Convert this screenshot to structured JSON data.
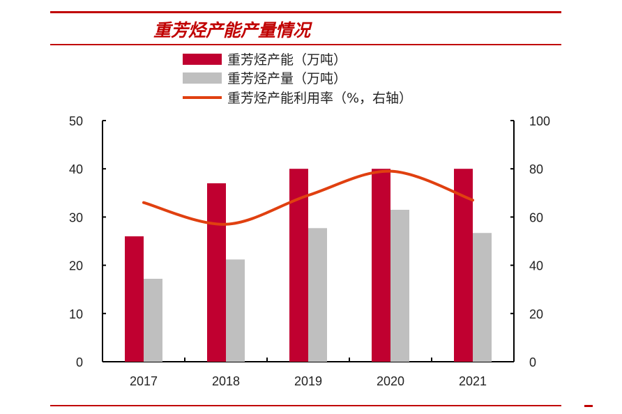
{
  "chart_data": {
    "type": "bar+line",
    "title": "重芳烃产能产量情况",
    "categories": [
      "2017",
      "2018",
      "2019",
      "2020",
      "2021"
    ],
    "series": [
      {
        "name": "重芳烃产能（万吨）",
        "type": "bar",
        "axis": "left",
        "color": "#c00030",
        "values": [
          26,
          37,
          40,
          40,
          40
        ]
      },
      {
        "name": "重芳烃产量（万吨）",
        "type": "bar",
        "axis": "left",
        "color": "#bfbfbf",
        "values": [
          17.2,
          21.2,
          27.7,
          31.5,
          26.7
        ]
      },
      {
        "name": "重芳烃产能利用率（%，右轴）",
        "type": "line",
        "axis": "right",
        "color": "#e04010",
        "values": [
          66,
          57,
          69,
          79,
          67
        ]
      }
    ],
    "ylim_left": [
      0,
      50
    ],
    "yticks_left": [
      0,
      10,
      20,
      30,
      40,
      50
    ],
    "ylim_right": [
      0,
      100
    ],
    "yticks_right": [
      0,
      20,
      40,
      60,
      80,
      100
    ],
    "legend": "top",
    "grid": false
  }
}
